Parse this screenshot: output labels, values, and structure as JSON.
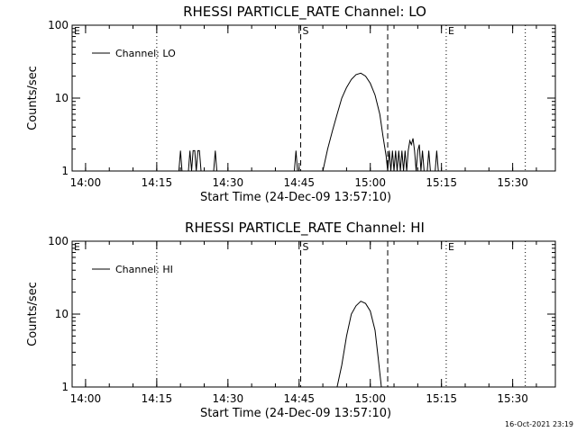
{
  "chart_data": [
    {
      "type": "line",
      "title": "RHESSI PARTICLE_RATE Channel: LO",
      "xlabel": "Start Time (24-Dec-09 13:57:10)",
      "ylabel": "Counts/sec",
      "y_scale": "log",
      "ylim": [
        1,
        100
      ],
      "xlim": [
        "13:57:10",
        "15:39:00"
      ],
      "x_ticks": [
        "14:00",
        "14:15",
        "14:30",
        "14:45",
        "15:00",
        "15:15",
        "15:30"
      ],
      "y_ticks": [
        "1",
        "10",
        "100"
      ],
      "legend": {
        "placement": "top-left",
        "entries": [
          "Channel: LO"
        ]
      },
      "grid": false,
      "markers": [
        {
          "label": "E",
          "time": "13:57:10",
          "style": "dotted"
        },
        {
          "label": "",
          "time": "14:15:00",
          "style": "dotted"
        },
        {
          "label": "S",
          "time": "14:45:20",
          "style": "dashed"
        },
        {
          "label": "",
          "time": "15:03:40",
          "style": "dashed"
        },
        {
          "label": "E",
          "time": "15:16:00",
          "style": "dotted"
        },
        {
          "label": "",
          "time": "15:32:40",
          "style": "dotted"
        }
      ],
      "series": [
        {
          "name": "Channel: LO",
          "points": [
            [
              "14:19:40",
              1
            ],
            [
              "14:20:00",
              1.9
            ],
            [
              "14:20:20",
              1
            ],
            [
              "14:21:40",
              1
            ],
            [
              "14:22:00",
              1.9
            ],
            [
              "14:22:20",
              1
            ],
            [
              "14:22:40",
              1.9
            ],
            [
              "14:23:00",
              1.9
            ],
            [
              "14:23:20",
              1
            ],
            [
              "14:23:40",
              1.9
            ],
            [
              "14:24:00",
              1.9
            ],
            [
              "14:24:20",
              1
            ],
            [
              "14:27:00",
              1
            ],
            [
              "14:27:20",
              1.9
            ],
            [
              "14:27:40",
              1
            ],
            [
              "14:44:00",
              1
            ],
            [
              "14:44:20",
              1.9
            ],
            [
              "14:44:40",
              1
            ],
            [
              "14:50:00",
              1
            ],
            [
              "14:51:00",
              2
            ],
            [
              "14:52:00",
              3.5
            ],
            [
              "14:53:00",
              6
            ],
            [
              "14:54:00",
              10
            ],
            [
              "14:55:00",
              14
            ],
            [
              "14:56:00",
              18
            ],
            [
              "14:57:00",
              21
            ],
            [
              "14:58:00",
              22
            ],
            [
              "14:59:00",
              20
            ],
            [
              "15:00:00",
              16
            ],
            [
              "15:01:00",
              11
            ],
            [
              "15:02:00",
              6
            ],
            [
              "15:02:40",
              3
            ],
            [
              "15:03:20",
              1.6
            ],
            [
              "15:03:40",
              1
            ],
            [
              "15:04:00",
              1.9
            ],
            [
              "15:04:20",
              1
            ],
            [
              "15:04:40",
              1.9
            ],
            [
              "15:05:00",
              1
            ],
            [
              "15:05:20",
              1.9
            ],
            [
              "15:05:40",
              1
            ],
            [
              "15:06:00",
              1.9
            ],
            [
              "15:06:20",
              1
            ],
            [
              "15:06:40",
              1.9
            ],
            [
              "15:07:00",
              1
            ],
            [
              "15:07:20",
              1.9
            ],
            [
              "15:07:40",
              1
            ],
            [
              "15:08:00",
              1.9
            ],
            [
              "15:08:20",
              2.6
            ],
            [
              "15:08:40",
              2.3
            ],
            [
              "15:09:00",
              2.8
            ],
            [
              "15:09:20",
              1.9
            ],
            [
              "15:09:40",
              1
            ],
            [
              "15:10:00",
              1.9
            ],
            [
              "15:10:20",
              2.3
            ],
            [
              "15:10:40",
              1
            ],
            [
              "15:11:00",
              1.9
            ],
            [
              "15:11:20",
              1
            ],
            [
              "15:12:00",
              1
            ],
            [
              "15:12:20",
              1.9
            ],
            [
              "15:12:40",
              1
            ],
            [
              "15:13:40",
              1
            ],
            [
              "15:14:00",
              1.9
            ],
            [
              "15:14:20",
              1
            ]
          ]
        }
      ]
    },
    {
      "type": "line",
      "title": "RHESSI PARTICLE_RATE Channel: HI",
      "xlabel": "Start Time (24-Dec-09 13:57:10)",
      "ylabel": "Counts/sec",
      "y_scale": "log",
      "ylim": [
        1,
        100
      ],
      "xlim": [
        "13:57:10",
        "15:39:00"
      ],
      "x_ticks": [
        "14:00",
        "14:15",
        "14:30",
        "14:45",
        "15:00",
        "15:15",
        "15:30"
      ],
      "y_ticks": [
        "1",
        "10",
        "100"
      ],
      "legend": {
        "placement": "top-left",
        "entries": [
          "Channel: HI"
        ]
      },
      "grid": false,
      "markers": [
        {
          "label": "E",
          "time": "13:57:10",
          "style": "dotted"
        },
        {
          "label": "",
          "time": "14:15:00",
          "style": "dotted"
        },
        {
          "label": "S",
          "time": "14:45:20",
          "style": "dashed"
        },
        {
          "label": "",
          "time": "15:03:40",
          "style": "dashed"
        },
        {
          "label": "E",
          "time": "15:16:00",
          "style": "dotted"
        },
        {
          "label": "",
          "time": "15:32:40",
          "style": "dotted"
        }
      ],
      "series": [
        {
          "name": "Channel: HI",
          "points": [
            [
              "14:53:00",
              1
            ],
            [
              "14:54:00",
              2
            ],
            [
              "14:55:00",
              5
            ],
            [
              "14:56:00",
              10
            ],
            [
              "14:57:00",
              13
            ],
            [
              "14:58:00",
              15
            ],
            [
              "14:59:00",
              14
            ],
            [
              "15:00:00",
              11
            ],
            [
              "15:01:00",
              6
            ],
            [
              "15:01:40",
              2.5
            ],
            [
              "15:02:20",
              1
            ]
          ]
        }
      ]
    }
  ],
  "footer": {
    "timestamp": "16-Oct-2021 23:19"
  }
}
